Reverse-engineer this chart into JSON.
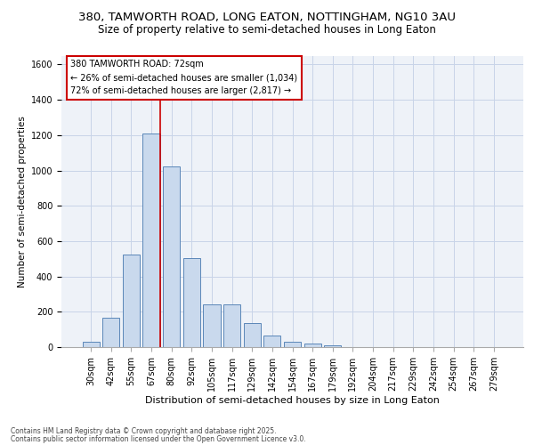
{
  "title1": "380, TAMWORTH ROAD, LONG EATON, NOTTINGHAM, NG10 3AU",
  "title2": "Size of property relative to semi-detached houses in Long Eaton",
  "xlabel": "Distribution of semi-detached houses by size in Long Eaton",
  "ylabel": "Number of semi-detached properties",
  "categories": [
    "30sqm",
    "42sqm",
    "55sqm",
    "67sqm",
    "80sqm",
    "92sqm",
    "105sqm",
    "117sqm",
    "129sqm",
    "142sqm",
    "154sqm",
    "167sqm",
    "179sqm",
    "192sqm",
    "204sqm",
    "217sqm",
    "229sqm",
    "242sqm",
    "254sqm",
    "267sqm",
    "279sqm"
  ],
  "values": [
    30,
    165,
    525,
    1210,
    1025,
    505,
    240,
    240,
    135,
    65,
    30,
    20,
    10,
    0,
    0,
    0,
    0,
    0,
    0,
    0,
    0
  ],
  "bar_color": "#c9d9ed",
  "bar_edge_color": "#5a87b8",
  "vline_color": "#cc0000",
  "vline_x": 3.42,
  "annotation_title": "380 TAMWORTH ROAD: 72sqm",
  "annotation_line1": "← 26% of semi-detached houses are smaller (1,034)",
  "annotation_line2": "72% of semi-detached houses are larger (2,817) →",
  "annotation_box_color": "#ffffff",
  "annotation_box_edge": "#cc0000",
  "ylim": [
    0,
    1650
  ],
  "yticks": [
    0,
    200,
    400,
    600,
    800,
    1000,
    1200,
    1400,
    1600
  ],
  "grid_color": "#c8d4e8",
  "bg_color": "#eef2f8",
  "footer1": "Contains HM Land Registry data © Crown copyright and database right 2025.",
  "footer2": "Contains public sector information licensed under the Open Government Licence v3.0.",
  "title_fontsize": 9.5,
  "subtitle_fontsize": 8.5,
  "ylabel_fontsize": 7.5,
  "xlabel_fontsize": 8,
  "tick_fontsize": 7,
  "ann_fontsize": 7,
  "footer_fontsize": 5.5
}
